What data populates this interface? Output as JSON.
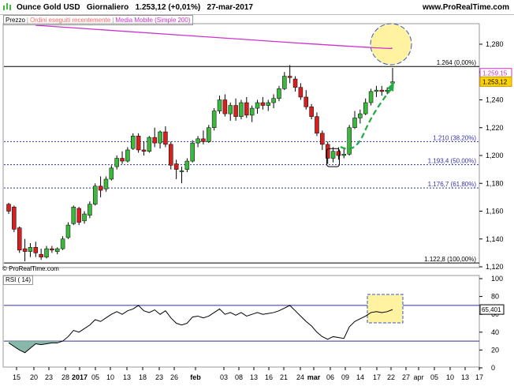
{
  "header": {
    "instrument": "Ounce Gold USD",
    "timeframe": "Giornaliero",
    "price_change": "1.253,12 (+0,01%)",
    "date": "27-mar-2017",
    "site": "www.ProRealTime.com"
  },
  "legend": {
    "price": "Prezzo",
    "orders": "Ordini eseguiti recentemente",
    "ma": "Media Mobile (Simple 200)"
  },
  "copyright": "© ProRealTime.com",
  "rsi_label": "RSI ( 14)",
  "colors": {
    "up": "#3cb83c",
    "down": "#d62020",
    "ma": "#cc33cc",
    "fib": "#3333aa",
    "rsi_line": "#000000",
    "rsi_fill": "#88b8a8",
    "highlight": "#fff2a0",
    "arrow": "#22aa44"
  },
  "chart_data": [
    {
      "type": "candlestick",
      "title": "Ounce Gold USD Giornaliero",
      "ylim": [
        1.12,
        1.28
      ],
      "y_ticks": [
        "1,280",
        "1,260",
        "1,240",
        "1,220",
        "1,200",
        "1,180",
        "1,160",
        "1,140",
        "1,120"
      ],
      "x_ticks": [
        "15",
        "20",
        "23",
        "28",
        "2017",
        "05",
        "10",
        "13",
        "18",
        "23",
        "26",
        "feb",
        "03",
        "08",
        "13",
        "16",
        "21",
        "24",
        "mar",
        "06",
        "09",
        "14",
        "17",
        "22",
        "27",
        "apr",
        "05",
        "10",
        "13",
        "17"
      ],
      "candles": [
        {
          "o": 1.165,
          "h": 1.166,
          "l": 1.158,
          "c": 1.16
        },
        {
          "o": 1.163,
          "h": 1.164,
          "l": 1.145,
          "c": 1.147
        },
        {
          "o": 1.148,
          "h": 1.149,
          "l": 1.13,
          "c": 1.132
        },
        {
          "o": 1.133,
          "h": 1.14,
          "l": 1.124,
          "c": 1.131
        },
        {
          "o": 1.131,
          "h": 1.137,
          "l": 1.127,
          "c": 1.134
        },
        {
          "o": 1.134,
          "h": 1.138,
          "l": 1.127,
          "c": 1.13
        },
        {
          "o": 1.129,
          "h": 1.133,
          "l": 1.125,
          "c": 1.127
        },
        {
          "o": 1.127,
          "h": 1.135,
          "l": 1.126,
          "c": 1.133
        },
        {
          "o": 1.133,
          "h": 1.135,
          "l": 1.13,
          "c": 1.132
        },
        {
          "o": 1.131,
          "h": 1.134,
          "l": 1.129,
          "c": 1.133
        },
        {
          "o": 1.133,
          "h": 1.142,
          "l": 1.132,
          "c": 1.14
        },
        {
          "o": 1.141,
          "h": 1.152,
          "l": 1.14,
          "c": 1.15
        },
        {
          "o": 1.151,
          "h": 1.164,
          "l": 1.15,
          "c": 1.163
        },
        {
          "o": 1.162,
          "h": 1.163,
          "l": 1.15,
          "c": 1.152
        },
        {
          "o": 1.153,
          "h": 1.16,
          "l": 1.151,
          "c": 1.158
        },
        {
          "o": 1.157,
          "h": 1.167,
          "l": 1.155,
          "c": 1.165
        },
        {
          "o": 1.165,
          "h": 1.18,
          "l": 1.164,
          "c": 1.178
        },
        {
          "o": 1.178,
          "h": 1.185,
          "l": 1.17,
          "c": 1.175
        },
        {
          "o": 1.176,
          "h": 1.185,
          "l": 1.174,
          "c": 1.183
        },
        {
          "o": 1.183,
          "h": 1.193,
          "l": 1.182,
          "c": 1.191
        },
        {
          "o": 1.192,
          "h": 1.2,
          "l": 1.19,
          "c": 1.198
        },
        {
          "o": 1.198,
          "h": 1.203,
          "l": 1.194,
          "c": 1.196
        },
        {
          "o": 1.196,
          "h": 1.206,
          "l": 1.195,
          "c": 1.204
        },
        {
          "o": 1.205,
          "h": 1.216,
          "l": 1.204,
          "c": 1.214
        },
        {
          "o": 1.214,
          "h": 1.216,
          "l": 1.202,
          "c": 1.204
        },
        {
          "o": 1.204,
          "h": 1.21,
          "l": 1.2,
          "c": 1.203
        },
        {
          "o": 1.203,
          "h": 1.214,
          "l": 1.202,
          "c": 1.213
        },
        {
          "o": 1.213,
          "h": 1.22,
          "l": 1.206,
          "c": 1.209
        },
        {
          "o": 1.209,
          "h": 1.218,
          "l": 1.205,
          "c": 1.217
        },
        {
          "o": 1.217,
          "h": 1.221,
          "l": 1.206,
          "c": 1.208
        },
        {
          "o": 1.208,
          "h": 1.21,
          "l": 1.19,
          "c": 1.193
        },
        {
          "o": 1.194,
          "h": 1.197,
          "l": 1.183,
          "c": 1.19
        },
        {
          "o": 1.189,
          "h": 1.192,
          "l": 1.18,
          "c": 1.189
        },
        {
          "o": 1.19,
          "h": 1.198,
          "l": 1.188,
          "c": 1.196
        },
        {
          "o": 1.196,
          "h": 1.211,
          "l": 1.195,
          "c": 1.209
        },
        {
          "o": 1.209,
          "h": 1.214,
          "l": 1.206,
          "c": 1.212
        },
        {
          "o": 1.212,
          "h": 1.218,
          "l": 1.208,
          "c": 1.21
        },
        {
          "o": 1.21,
          "h": 1.222,
          "l": 1.209,
          "c": 1.22
        },
        {
          "o": 1.22,
          "h": 1.234,
          "l": 1.218,
          "c": 1.232
        },
        {
          "o": 1.232,
          "h": 1.243,
          "l": 1.23,
          "c": 1.24
        },
        {
          "o": 1.24,
          "h": 1.244,
          "l": 1.228,
          "c": 1.23
        },
        {
          "o": 1.23,
          "h": 1.238,
          "l": 1.225,
          "c": 1.236
        },
        {
          "o": 1.236,
          "h": 1.241,
          "l": 1.225,
          "c": 1.228
        },
        {
          "o": 1.228,
          "h": 1.24,
          "l": 1.226,
          "c": 1.238
        },
        {
          "o": 1.238,
          "h": 1.242,
          "l": 1.227,
          "c": 1.229
        },
        {
          "o": 1.229,
          "h": 1.236,
          "l": 1.224,
          "c": 1.234
        },
        {
          "o": 1.234,
          "h": 1.24,
          "l": 1.23,
          "c": 1.238
        },
        {
          "o": 1.238,
          "h": 1.242,
          "l": 1.233,
          "c": 1.236
        },
        {
          "o": 1.236,
          "h": 1.24,
          "l": 1.232,
          "c": 1.238
        },
        {
          "o": 1.238,
          "h": 1.244,
          "l": 1.234,
          "c": 1.241
        },
        {
          "o": 1.241,
          "h": 1.25,
          "l": 1.239,
          "c": 1.248
        },
        {
          "o": 1.248,
          "h": 1.26,
          "l": 1.247,
          "c": 1.257
        },
        {
          "o": 1.257,
          "h": 1.265,
          "l": 1.252,
          "c": 1.256
        },
        {
          "o": 1.255,
          "h": 1.257,
          "l": 1.246,
          "c": 1.249
        },
        {
          "o": 1.249,
          "h": 1.252,
          "l": 1.24,
          "c": 1.242
        },
        {
          "o": 1.242,
          "h": 1.247,
          "l": 1.233,
          "c": 1.235
        },
        {
          "o": 1.235,
          "h": 1.237,
          "l": 1.226,
          "c": 1.228
        },
        {
          "o": 1.228,
          "h": 1.231,
          "l": 1.214,
          "c": 1.216
        },
        {
          "o": 1.216,
          "h": 1.218,
          "l": 1.204,
          "c": 1.208
        },
        {
          "o": 1.208,
          "h": 1.21,
          "l": 1.194,
          "c": 1.198
        },
        {
          "o": 1.198,
          "h": 1.206,
          "l": 1.195,
          "c": 1.203
        },
        {
          "o": 1.203,
          "h": 1.206,
          "l": 1.197,
          "c": 1.2
        },
        {
          "o": 1.2,
          "h": 1.206,
          "l": 1.198,
          "c": 1.201
        },
        {
          "o": 1.201,
          "h": 1.222,
          "l": 1.2,
          "c": 1.22
        },
        {
          "o": 1.22,
          "h": 1.232,
          "l": 1.219,
          "c": 1.227
        },
        {
          "o": 1.227,
          "h": 1.233,
          "l": 1.223,
          "c": 1.23
        },
        {
          "o": 1.23,
          "h": 1.241,
          "l": 1.229,
          "c": 1.238
        },
        {
          "o": 1.238,
          "h": 1.248,
          "l": 1.236,
          "c": 1.246
        },
        {
          "o": 1.246,
          "h": 1.25,
          "l": 1.242,
          "c": 1.247
        },
        {
          "o": 1.247,
          "h": 1.25,
          "l": 1.243,
          "c": 1.246
        },
        {
          "o": 1.246,
          "h": 1.249,
          "l": 1.244,
          "c": 1.247
        },
        {
          "o": 1.252,
          "h": 1.263,
          "l": 1.25,
          "c": 1.253
        }
      ],
      "moving_average": {
        "name": "Media Mobile (Simple 200)",
        "start": 1.2735,
        "end": 1.2592
      },
      "levels": [
        {
          "label": "1.264 (0,00%)",
          "y": 1.264,
          "style": "solid"
        },
        {
          "label": "1.210 (38,20%)",
          "y": 1.21,
          "style": "dotted"
        },
        {
          "label": "1.193,4 (50,00%)",
          "y": 1.1934,
          "style": "dotted"
        },
        {
          "label": "1.176,7 (61,80%)",
          "y": 1.1767,
          "style": "dotted"
        },
        {
          "label": "1.122,8 (100,00%)",
          "y": 1.1228,
          "style": "solid"
        }
      ],
      "price_tags": [
        {
          "label": "1.259,15",
          "y": 1.25915,
          "kind": "ma"
        },
        {
          "label": "1.253,12",
          "y": 1.25312,
          "kind": "price"
        }
      ]
    },
    {
      "type": "line",
      "title": "RSI ( 14)",
      "ylim": [
        0,
        100
      ],
      "y_ticks": [
        "100",
        "80",
        "60",
        "40",
        "20",
        "0"
      ],
      "levels": [
        70,
        30
      ],
      "last_value_label": "65,401",
      "values": [
        28,
        24,
        20,
        17,
        22,
        27,
        26,
        27,
        28,
        28,
        30,
        35,
        42,
        40,
        44,
        48,
        54,
        52,
        56,
        60,
        63,
        60,
        64,
        66,
        70,
        64,
        62,
        65,
        60,
        64,
        56,
        50,
        48,
        50,
        57,
        58,
        56,
        58,
        62,
        66,
        60,
        62,
        59,
        62,
        58,
        60,
        62,
        60,
        61,
        62,
        64,
        67,
        70,
        64,
        58,
        52,
        47,
        40,
        35,
        32,
        35,
        34,
        33,
        46,
        52,
        55,
        58,
        62,
        63,
        62,
        63,
        65.4
      ]
    }
  ]
}
